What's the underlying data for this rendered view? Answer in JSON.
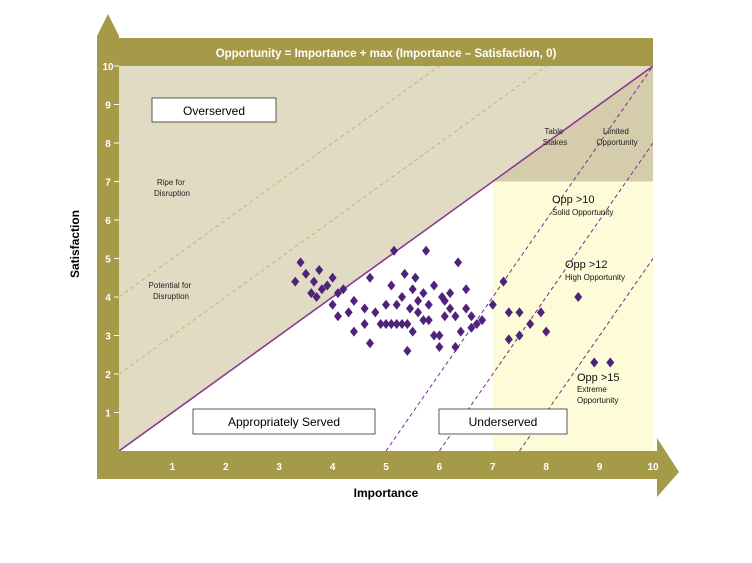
{
  "chart_data": {
    "type": "scatter",
    "title": "Opportunity = Importance + max (Importance – Satisfaction, 0)",
    "xlabel": "Importance",
    "ylabel": "Satisfaction",
    "xlim": [
      0,
      10
    ],
    "ylim": [
      0,
      10
    ],
    "x_ticks": [
      "1",
      "2",
      "3",
      "4",
      "5",
      "6",
      "7",
      "8",
      "9",
      "10"
    ],
    "y_ticks": [
      "1",
      "2",
      "3",
      "4",
      "5",
      "6",
      "7",
      "8",
      "9",
      "10"
    ],
    "regions": {
      "overserved": "Overserved",
      "appropriately_served": "Appropriately Served",
      "underserved": "Underserved",
      "ripe_for_disruption": [
        "Ripe for",
        "Disruption"
      ],
      "potential_for_disruption": [
        "Potential for",
        "Disruption"
      ],
      "table_stakes": [
        "Table",
        "Stakes"
      ],
      "limited_opportunity": [
        "Limited",
        "Opportunity"
      ],
      "opp_10": [
        "Opp >10",
        "Solid Opportunity"
      ],
      "opp_12": [
        "Opp >12",
        "High Opportunity"
      ],
      "opp_15": [
        "Opp >15",
        "Extreme",
        "Opportunity"
      ]
    },
    "colors": {
      "frame": "#a59a48",
      "overserved_fill": "#e2dbc3",
      "underserved_fill": "#fdfbd8",
      "top_right_fill": "#d4ccab",
      "diagonal": "#8a3a96",
      "dashed": "#7a2e93",
      "dashed_light": "#c9b468",
      "marker": "#4e2379"
    },
    "points": [
      [
        3.3,
        4.4
      ],
      [
        3.4,
        4.9
      ],
      [
        3.5,
        4.6
      ],
      [
        3.6,
        4.1
      ],
      [
        3.65,
        4.4
      ],
      [
        3.7,
        4.0
      ],
      [
        3.75,
        4.7
      ],
      [
        3.8,
        4.2
      ],
      [
        3.9,
        4.3
      ],
      [
        4.0,
        3.8
      ],
      [
        4.0,
        4.5
      ],
      [
        4.1,
        3.5
      ],
      [
        4.1,
        4.1
      ],
      [
        4.2,
        4.2
      ],
      [
        4.3,
        3.6
      ],
      [
        4.4,
        3.1
      ],
      [
        4.4,
        3.9
      ],
      [
        4.6,
        3.3
      ],
      [
        4.6,
        3.7
      ],
      [
        4.7,
        4.5
      ],
      [
        4.7,
        2.8
      ],
      [
        4.8,
        3.6
      ],
      [
        4.9,
        3.3
      ],
      [
        5.0,
        3.8
      ],
      [
        5.0,
        3.3
      ],
      [
        5.1,
        3.3
      ],
      [
        5.1,
        4.3
      ],
      [
        5.15,
        5.2
      ],
      [
        5.2,
        3.3
      ],
      [
        5.2,
        3.8
      ],
      [
        5.3,
        3.3
      ],
      [
        5.3,
        4.0
      ],
      [
        5.35,
        4.6
      ],
      [
        5.4,
        2.6
      ],
      [
        5.4,
        3.3
      ],
      [
        5.45,
        3.7
      ],
      [
        5.5,
        4.2
      ],
      [
        5.5,
        3.1
      ],
      [
        5.55,
        4.5
      ],
      [
        5.6,
        3.6
      ],
      [
        5.6,
        3.9
      ],
      [
        5.7,
        3.4
      ],
      [
        5.7,
        4.1
      ],
      [
        5.75,
        5.2
      ],
      [
        5.8,
        3.4
      ],
      [
        5.8,
        3.8
      ],
      [
        5.9,
        3.0
      ],
      [
        5.9,
        4.3
      ],
      [
        6.0,
        2.7
      ],
      [
        6.0,
        3.0
      ],
      [
        6.05,
        4.0
      ],
      [
        6.1,
        3.5
      ],
      [
        6.1,
        3.9
      ],
      [
        6.2,
        4.1
      ],
      [
        6.2,
        3.7
      ],
      [
        6.3,
        2.7
      ],
      [
        6.3,
        3.5
      ],
      [
        6.35,
        4.9
      ],
      [
        6.4,
        3.1
      ],
      [
        6.5,
        3.7
      ],
      [
        6.5,
        4.2
      ],
      [
        6.6,
        3.2
      ],
      [
        6.6,
        3.5
      ],
      [
        6.7,
        3.3
      ],
      [
        6.8,
        3.4
      ],
      [
        7.0,
        3.8
      ],
      [
        7.2,
        4.4
      ],
      [
        7.3,
        3.6
      ],
      [
        7.3,
        2.9
      ],
      [
        7.5,
        3.0
      ],
      [
        7.5,
        3.6
      ],
      [
        7.7,
        3.3
      ],
      [
        7.9,
        3.6
      ],
      [
        8.0,
        3.1
      ],
      [
        8.6,
        4.0
      ],
      [
        8.9,
        2.3
      ],
      [
        9.2,
        2.3
      ]
    ]
  }
}
